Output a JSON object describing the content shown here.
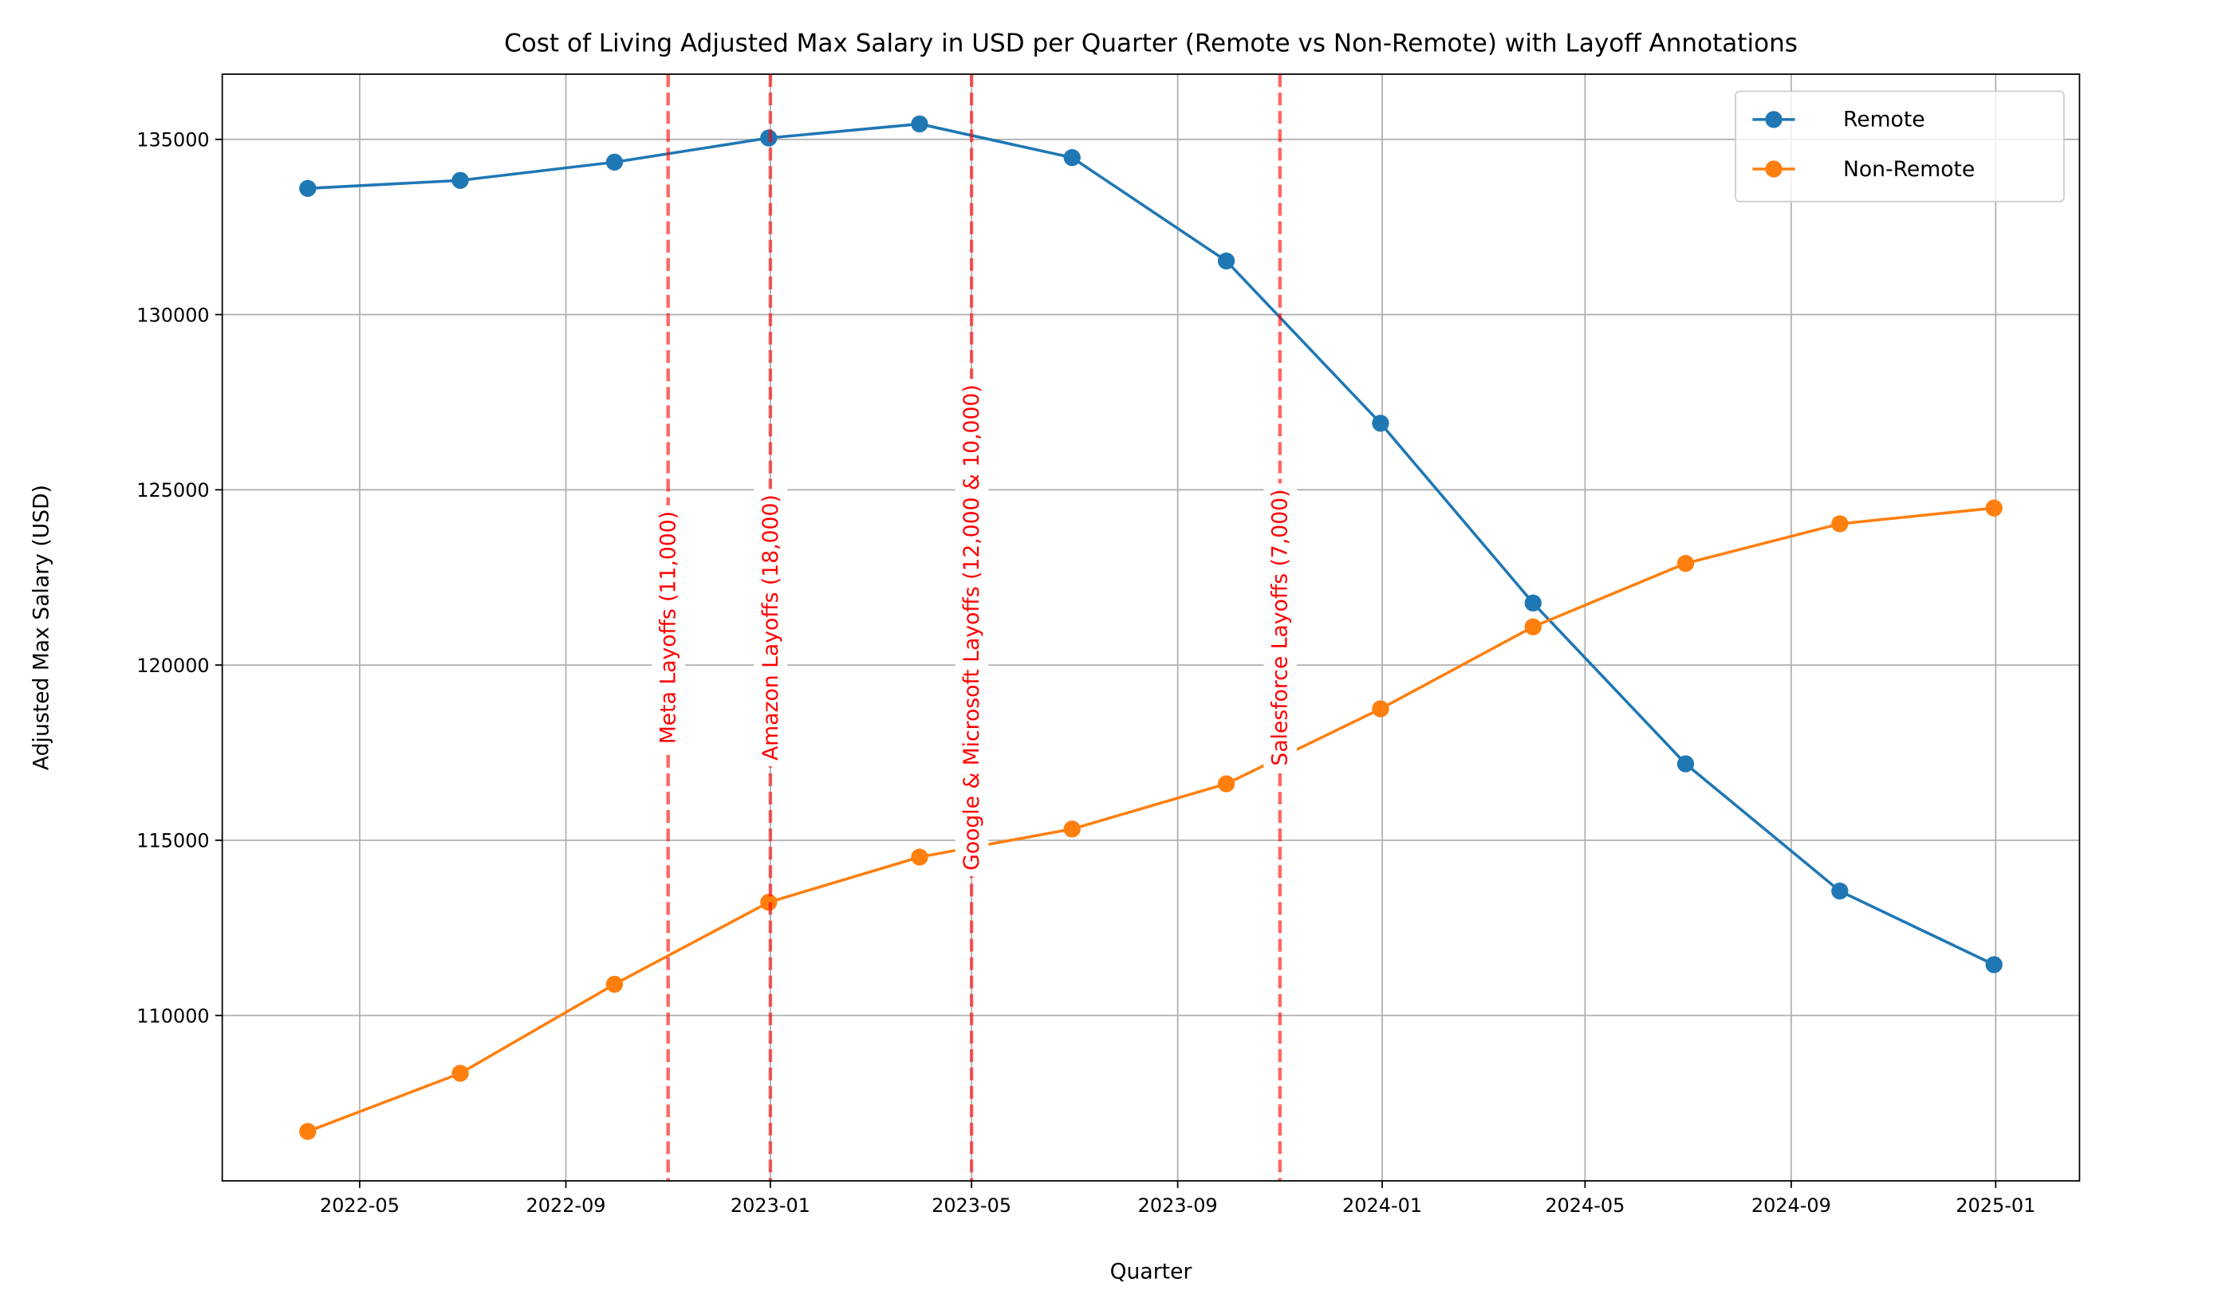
{
  "chart_data": {
    "type": "line",
    "title": "Cost of Living Adjusted Max Salary in USD per Quarter (Remote vs Non-Remote) with Layoff Annotations",
    "xlabel": "Quarter",
    "ylabel": "Adjusted Max Salary (USD)",
    "x": [
      "2022-03-31",
      "2022-06-30",
      "2022-09-30",
      "2022-12-31",
      "2023-03-31",
      "2023-06-30",
      "2023-09-30",
      "2023-12-31",
      "2024-03-31",
      "2024-06-30",
      "2024-09-30",
      "2024-12-31"
    ],
    "series": [
      {
        "name": "Remote",
        "color": "#1f77b4",
        "values": [
          133600,
          133830,
          134350,
          135040,
          135440,
          134480,
          131530,
          126900,
          121770,
          117180,
          113550,
          111450
        ]
      },
      {
        "name": "Non-Remote",
        "color": "#ff7f0e",
        "values": [
          106690,
          108350,
          110890,
          113230,
          114520,
          115320,
          116610,
          118750,
          121090,
          122900,
          124030,
          124480
        ]
      }
    ],
    "xlim": [
      "2022-02-08",
      "2025-02-20"
    ],
    "ylim": [
      105280,
      136860
    ],
    "x_ticks": [
      "2022-05",
      "2022-09",
      "2023-01",
      "2023-05",
      "2023-09",
      "2024-01",
      "2024-05",
      "2024-09",
      "2025-01"
    ],
    "y_ticks": [
      "110000",
      "115000",
      "120000",
      "125000",
      "130000",
      "135000"
    ],
    "annotations": [
      {
        "date": "2022-11-01",
        "label": "Meta Layoffs (11,000)"
      },
      {
        "date": "2023-01-01",
        "label": "Amazon Layoffs (18,000)"
      },
      {
        "date": "2023-05-01",
        "label": "Google & Microsoft Layoffs (12,000 & 10,000)"
      },
      {
        "date": "2023-11-01",
        "label": "Salesforce Layoffs (7,000)"
      }
    ],
    "annotation_color": "#ff0000",
    "grid": true,
    "legend": "top-right"
  }
}
